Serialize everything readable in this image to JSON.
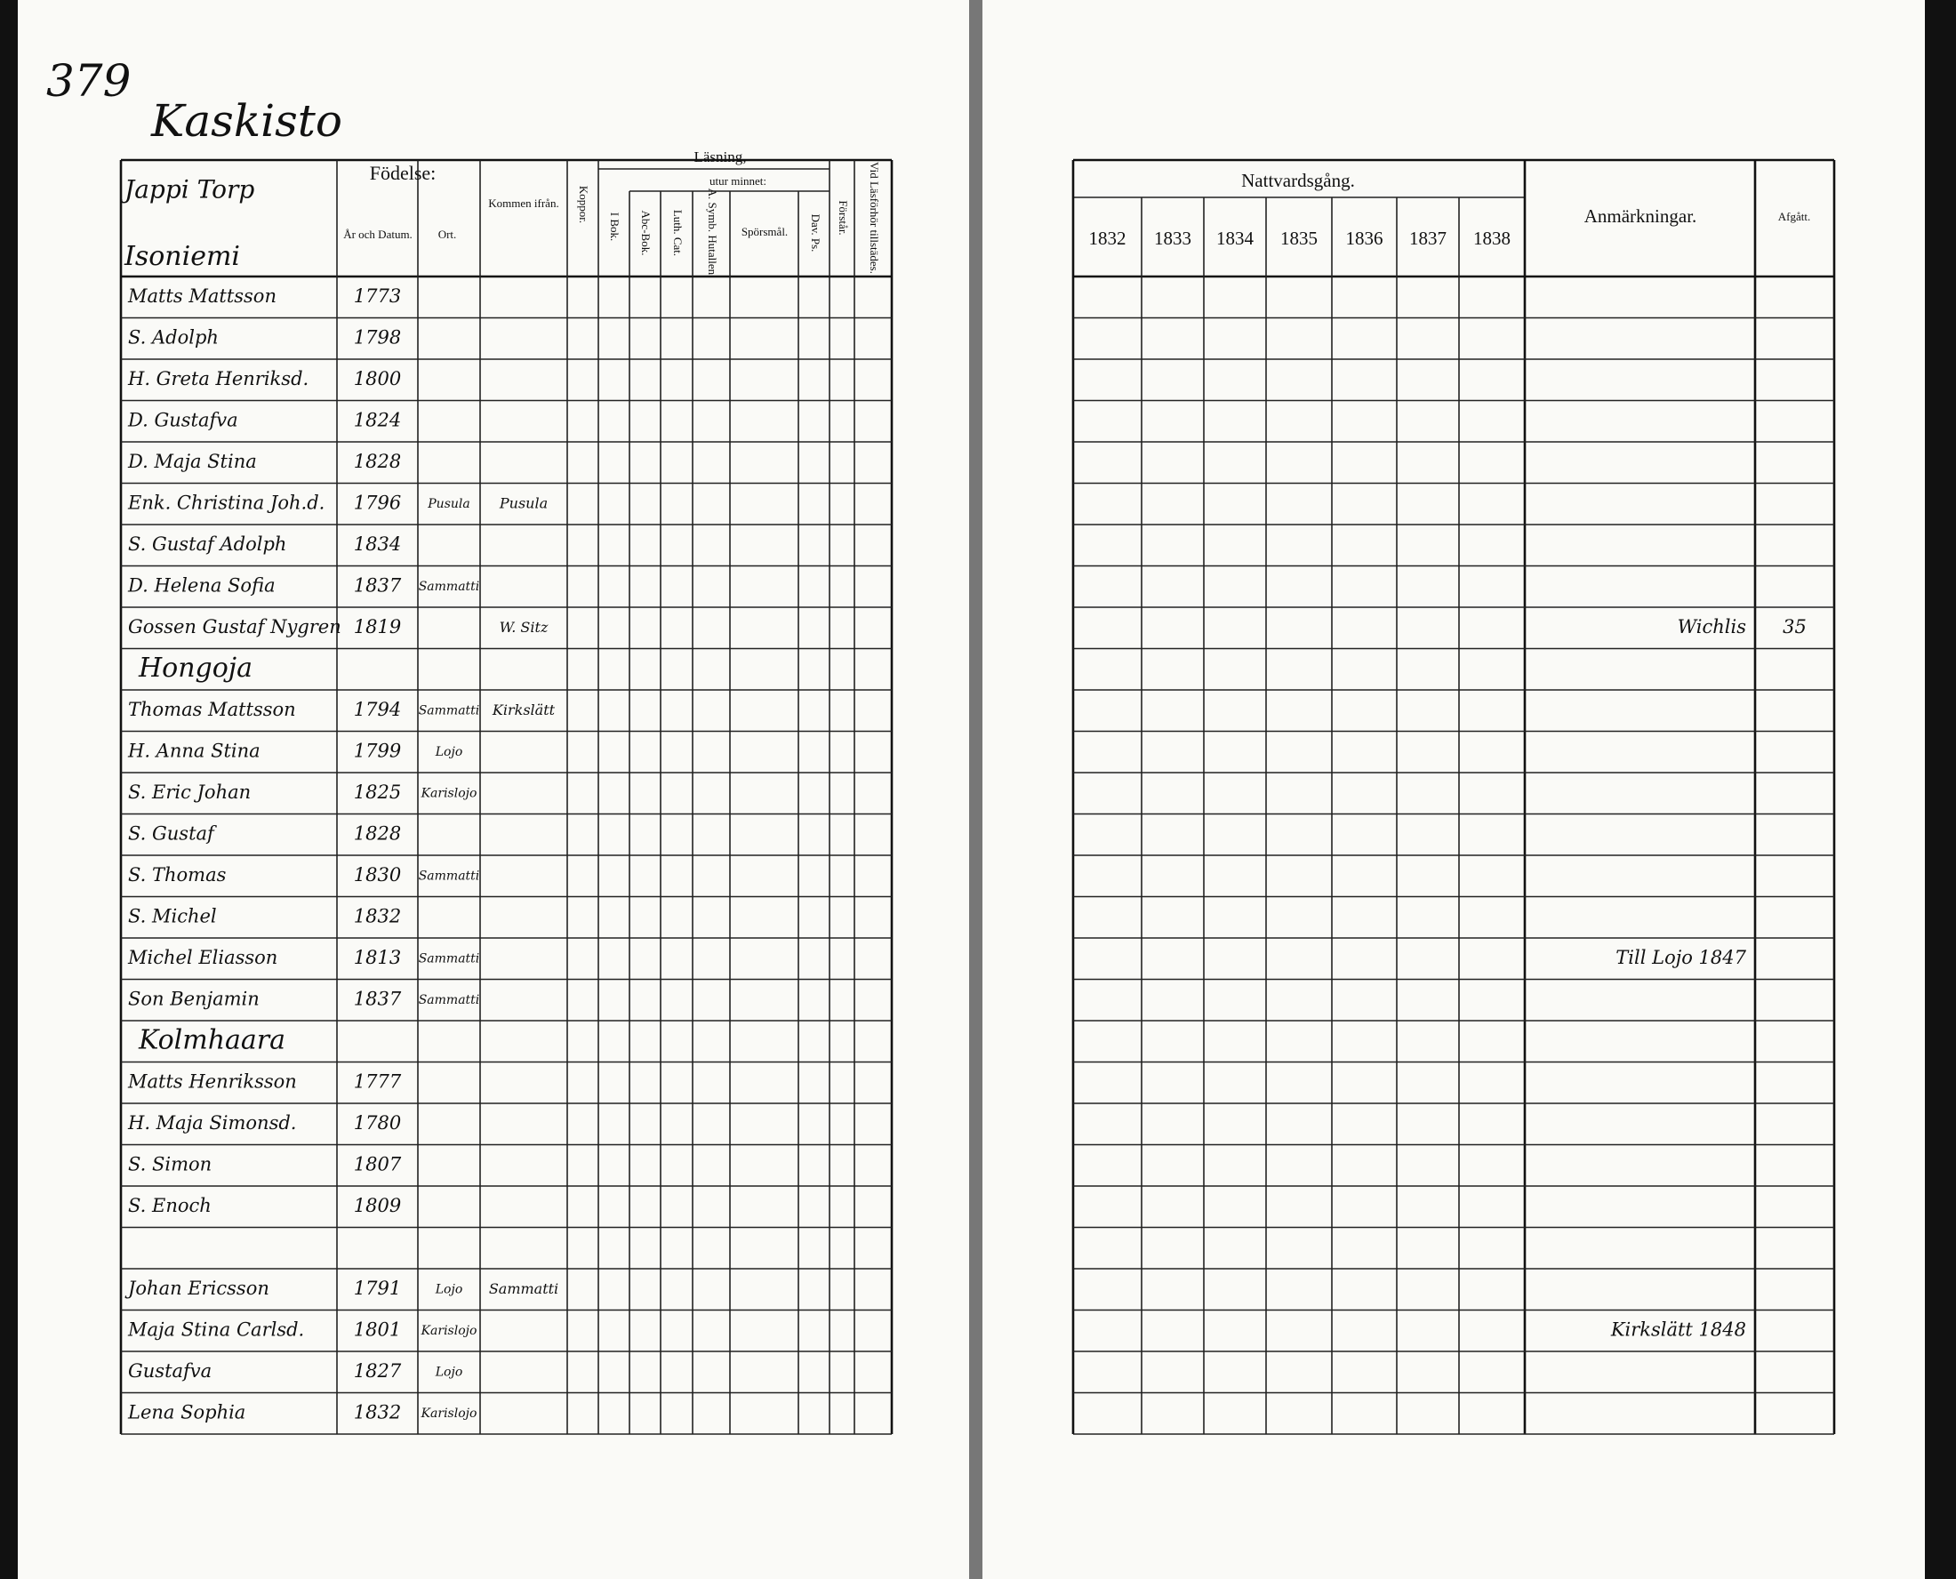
{
  "page_number": "379",
  "village": "Kaskisto",
  "farm": "Jappi Torp",
  "left_page": {
    "birth_header": "Födelse:",
    "birth_date": "År och Datum.",
    "birth_place": "Ort.",
    "came_from": "Kommen ifrån.",
    "smallpox": "Koppor.",
    "reading": "Läsning,",
    "by_heart": "utur minnet:",
    "book": "I Bok.",
    "abc": "Abc-Bok.",
    "catechism": "Luth. Cat.",
    "symbol": "A. Symb. Hutallen.",
    "questions": "Spörsmål.",
    "psalms": "Dav. Ps.",
    "understands": "Förstår.",
    "attended": "Vid Läsförhör tillstädes."
  },
  "right_page": {
    "communion": "Nattvardsgång.",
    "years": [
      "1832",
      "1833",
      "1834",
      "1835",
      "1836",
      "1837",
      "1838"
    ],
    "remarks": "Anmärkningar.",
    "departed": "Afgått."
  },
  "households": [
    {
      "name": "Isoniemi",
      "members": [
        {
          "name": "Matts Mattsson",
          "born": "1773"
        },
        {
          "name": "S. Adolph",
          "born": "1798"
        },
        {
          "name": "H. Greta Henriksd.",
          "born": "1800"
        },
        {
          "name": "D. Gustafva",
          "born": "1824"
        },
        {
          "name": "D. Maja Stina",
          "born": "1828"
        },
        {
          "name": "Enk. Christina Joh.d.",
          "born": "1796",
          "place": "Pusula",
          "from": "Pusula"
        },
        {
          "name": "S. Gustaf Adolph",
          "born": "1834"
        },
        {
          "name": "D. Helena Sofia",
          "born": "1837",
          "place": "Sammatti"
        },
        {
          "name": "Gossen Gustaf Nygren",
          "born": "1819",
          "from": "W. Sitz",
          "remark": "Wichlis",
          "departed": "35"
        }
      ]
    },
    {
      "name": "Hongoja",
      "members": [
        {
          "name": "Thomas Mattsson",
          "born": "1794",
          "place": "Sammatti",
          "from": "Kirkslätt"
        },
        {
          "name": "H. Anna Stina",
          "born": "1799",
          "place": "Lojo"
        },
        {
          "name": "S. Eric Johan",
          "born": "1825",
          "place": "Karislojo"
        },
        {
          "name": "S. Gustaf",
          "born": "1828"
        },
        {
          "name": "S. Thomas",
          "born": "1830",
          "place": "Sammatti"
        },
        {
          "name": "S. Michel",
          "born": "1832"
        },
        {
          "name": "Michel Eliasson",
          "born": "1813",
          "place": "Sammatti",
          "remark": "Till Lojo 1847"
        },
        {
          "name": "Son Benjamin",
          "born": "1837",
          "place": "Sammatti"
        }
      ]
    },
    {
      "name": "Kolmhaara",
      "members": [
        {
          "name": "Matts Henriksson",
          "born": "1777"
        },
        {
          "name": "H. Maja Simonsd.",
          "born": "1780"
        },
        {
          "name": "S. Simon",
          "born": "1807"
        },
        {
          "name": "S. Enoch",
          "born": "1809"
        }
      ]
    },
    {
      "members": [
        {
          "name": "Johan Ericsson",
          "born": "1791",
          "place": "Lojo",
          "from": "Sammatti"
        },
        {
          "name": "Maja Stina Carlsd.",
          "born": "1801",
          "place": "Karislojo",
          "remark": "Kirkslätt 1848"
        },
        {
          "name": "Gustafva",
          "born": "1827",
          "place": "Lojo"
        },
        {
          "name": "Lena Sophia",
          "born": "1832",
          "place": "Karislojo"
        }
      ]
    }
  ]
}
